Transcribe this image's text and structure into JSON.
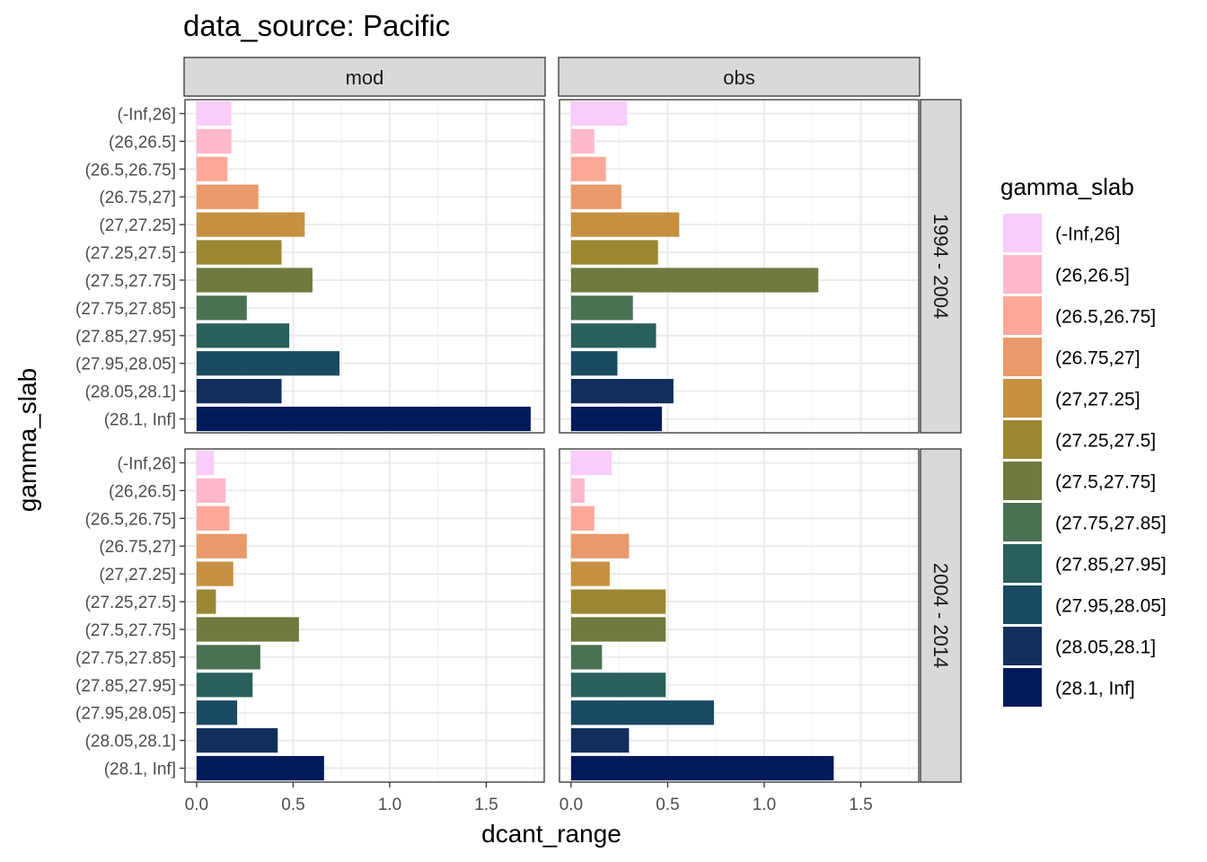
{
  "chart_data": {
    "type": "bar",
    "orientation": "horizontal",
    "title": "data_source: Pacific",
    "xlabel": "dcant_range",
    "ylabel": "gamma_slab",
    "xlim": [
      -0.06,
      1.8
    ],
    "xticks": [
      "0.0",
      "0.5",
      "1.0",
      "1.5"
    ],
    "xtick_values": [
      0,
      0.5,
      1.0,
      1.5
    ],
    "grid": true,
    "categories": [
      "(-Inf,26]",
      "(26,26.5]",
      "(26.5,26.75]",
      "(26.75,27]",
      "(27,27.25]",
      "(27.25,27.5]",
      "(27.5,27.75]",
      "(27.75,27.85]",
      "(27.85,27.95]",
      "(27.95,28.05]",
      "(28.05,28.1]",
      "(28.1, Inf]"
    ],
    "colors": [
      "#F9CCF9",
      "#FDB8CA",
      "#FBA898",
      "#E99A6A",
      "#C69040",
      "#9C8832",
      "#6E7A3E",
      "#4A7252",
      "#29605C",
      "#1A4A62",
      "#112F5C",
      "#001A5A"
    ],
    "col_facets": [
      "mod",
      "obs"
    ],
    "row_facets": [
      "1994 - 2004",
      "2004 - 2014"
    ],
    "panels": [
      {
        "col": "mod",
        "row": "1994 - 2004",
        "values": [
          0.18,
          0.18,
          0.16,
          0.32,
          0.56,
          0.44,
          0.6,
          0.26,
          0.48,
          0.74,
          0.44,
          1.73
        ]
      },
      {
        "col": "obs",
        "row": "1994 - 2004",
        "values": [
          0.29,
          0.12,
          0.18,
          0.26,
          0.56,
          0.45,
          1.28,
          0.32,
          0.44,
          0.24,
          0.53,
          0.47
        ]
      },
      {
        "col": "mod",
        "row": "2004 - 2014",
        "values": [
          0.09,
          0.15,
          0.17,
          0.26,
          0.19,
          0.1,
          0.53,
          0.33,
          0.29,
          0.21,
          0.42,
          0.66
        ]
      },
      {
        "col": "obs",
        "row": "2004 - 2014",
        "values": [
          0.21,
          0.07,
          0.12,
          0.3,
          0.2,
          0.49,
          0.49,
          0.16,
          0.49,
          0.74,
          0.3,
          1.36
        ]
      }
    ],
    "legend": {
      "title": "gamma_slab",
      "position": "right",
      "entries": [
        "(-Inf,26]",
        "(26,26.5]",
        "(26.5,26.75]",
        "(26.75,27]",
        "(27,27.25]",
        "(27.25,27.5]",
        "(27.5,27.75]",
        "(27.75,27.85]",
        "(27.85,27.95]",
        "(27.95,28.05]",
        "(28.05,28.1]",
        "(28.1, Inf]"
      ]
    }
  }
}
